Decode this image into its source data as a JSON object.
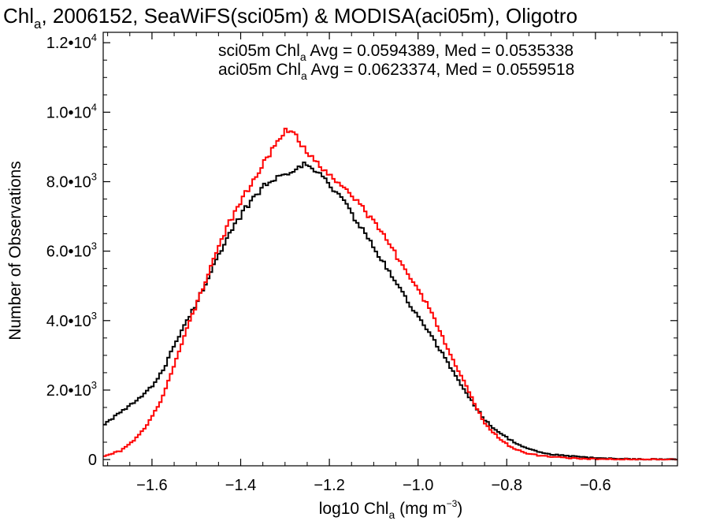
{
  "chart_data": {
    "type": "line",
    "title": {
      "main": "Chl",
      "sub": "a",
      "rest": ", 2006152, SeaWiFS(sci05m) & MODISA(aci05m), Oligotro"
    },
    "xlabel": {
      "main": "log10 Chl",
      "sub": "a",
      "rest": " (mg m",
      "sup": "−3",
      "end": ")"
    },
    "ylabel": "Number of Observations",
    "xlim": [
      -1.71,
      -0.415
    ],
    "ylim": [
      -180,
      12300
    ],
    "x_ticks": [
      {
        "value": -1.6,
        "label": "−1.6"
      },
      {
        "value": -1.4,
        "label": "−1.4"
      },
      {
        "value": -1.2,
        "label": "−1.2"
      },
      {
        "value": -1.0,
        "label": "−1.0"
      },
      {
        "value": -0.8,
        "label": "−0.8"
      },
      {
        "value": -0.6,
        "label": "−0.6"
      }
    ],
    "y_ticks": [
      {
        "value": 0,
        "mant": "0",
        "exp": ""
      },
      {
        "value": 2000,
        "mant": "2.0•10",
        "exp": "3"
      },
      {
        "value": 4000,
        "mant": "4.0•10",
        "exp": "3"
      },
      {
        "value": 6000,
        "mant": "6.0•10",
        "exp": "3"
      },
      {
        "value": 8000,
        "mant": "8.0•10",
        "exp": "3"
      },
      {
        "value": 10000,
        "mant": "1.0•10",
        "exp": "4"
      },
      {
        "value": 12000,
        "mant": "1.2•10",
        "exp": "4"
      }
    ],
    "legend_position": "top-right",
    "annotations": [
      {
        "prefix": "sci05m Chl",
        "sub": "a",
        "suffix": " Avg = 0.0594389, Med = 0.0535338",
        "color": "#000000"
      },
      {
        "prefix": "aci05m Chl",
        "sub": "a",
        "suffix": " Avg = 0.0623374, Med = 0.0559518",
        "color": "#ff0000"
      }
    ],
    "series": [
      {
        "name": "sci05m",
        "color": "#000000",
        "points": [
          [
            -1.71,
            1000
          ],
          [
            -1.66,
            1450
          ],
          [
            -1.62,
            1850
          ],
          [
            -1.6,
            2100
          ],
          [
            -1.57,
            2700
          ],
          [
            -1.55,
            3300
          ],
          [
            -1.52,
            4000
          ],
          [
            -1.5,
            4500
          ],
          [
            -1.47,
            5350
          ],
          [
            -1.44,
            6100
          ],
          [
            -1.41,
            6800
          ],
          [
            -1.38,
            7400
          ],
          [
            -1.35,
            7850
          ],
          [
            -1.32,
            8100
          ],
          [
            -1.29,
            8300
          ],
          [
            -1.26,
            8500
          ],
          [
            -1.24,
            8400
          ],
          [
            -1.22,
            8200
          ],
          [
            -1.2,
            7900
          ],
          [
            -1.17,
            7500
          ],
          [
            -1.14,
            6900
          ],
          [
            -1.11,
            6300
          ],
          [
            -1.08,
            5700
          ],
          [
            -1.05,
            5100
          ],
          [
            -1.02,
            4500
          ],
          [
            -1.0,
            4100
          ],
          [
            -0.97,
            3550
          ],
          [
            -0.94,
            2950
          ],
          [
            -0.91,
            2300
          ],
          [
            -0.88,
            1700
          ],
          [
            -0.85,
            1150
          ],
          [
            -0.82,
            800
          ],
          [
            -0.79,
            550
          ],
          [
            -0.76,
            350
          ],
          [
            -0.73,
            220
          ],
          [
            -0.7,
            150
          ],
          [
            -0.66,
            100
          ],
          [
            -0.62,
            60
          ],
          [
            -0.58,
            30
          ],
          [
            -0.52,
            15
          ],
          [
            -0.415,
            5
          ]
        ]
      },
      {
        "name": "aci05m",
        "color": "#ff0000",
        "points": [
          [
            -1.71,
            100
          ],
          [
            -1.67,
            250
          ],
          [
            -1.64,
            550
          ],
          [
            -1.61,
            1000
          ],
          [
            -1.58,
            1700
          ],
          [
            -1.55,
            2700
          ],
          [
            -1.52,
            3800
          ],
          [
            -1.49,
            4800
          ],
          [
            -1.46,
            5800
          ],
          [
            -1.43,
            6700
          ],
          [
            -1.4,
            7400
          ],
          [
            -1.37,
            8100
          ],
          [
            -1.34,
            8700
          ],
          [
            -1.32,
            9100
          ],
          [
            -1.3,
            9500
          ],
          [
            -1.28,
            9500
          ],
          [
            -1.26,
            9000
          ],
          [
            -1.24,
            8700
          ],
          [
            -1.22,
            8400
          ],
          [
            -1.2,
            8200
          ],
          [
            -1.17,
            7900
          ],
          [
            -1.14,
            7500
          ],
          [
            -1.11,
            7000
          ],
          [
            -1.08,
            6500
          ],
          [
            -1.05,
            5900
          ],
          [
            -1.02,
            5300
          ],
          [
            -1.0,
            4900
          ],
          [
            -0.97,
            4250
          ],
          [
            -0.94,
            3400
          ],
          [
            -0.91,
            2600
          ],
          [
            -0.88,
            1800
          ],
          [
            -0.85,
            1050
          ],
          [
            -0.82,
            650
          ],
          [
            -0.79,
            350
          ],
          [
            -0.76,
            200
          ],
          [
            -0.73,
            120
          ],
          [
            -0.7,
            80
          ],
          [
            -0.66,
            40
          ],
          [
            -0.62,
            20
          ],
          [
            -0.55,
            10
          ],
          [
            -0.415,
            5
          ]
        ]
      }
    ]
  }
}
